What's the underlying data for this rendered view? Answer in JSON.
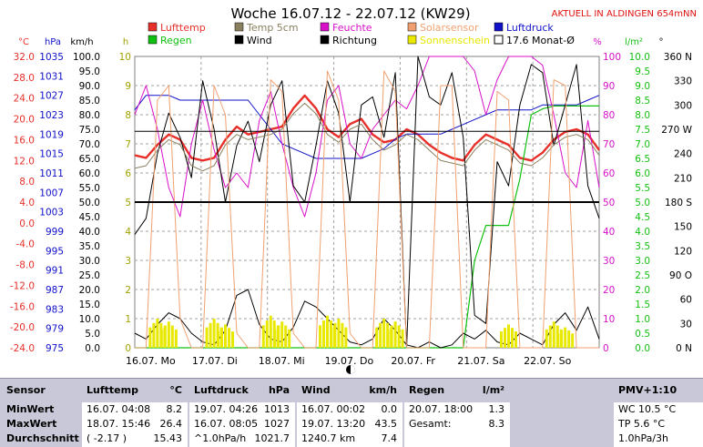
{
  "title": "Woche 16.07.12 - 22.07.12 (KW29)",
  "aktuell": "AKTUELL IN ALDINGEN 654mNN",
  "legend": [
    {
      "label": "Lufttemp",
      "color": "#e8302a"
    },
    {
      "label": "Temp 5cm",
      "color": "#8a8060"
    },
    {
      "label": "Feuchte",
      "color": "#d810c8"
    },
    {
      "label": "Solarsensor",
      "color": "#f0a070"
    },
    {
      "label": "Luftdruck",
      "color": "#1010c8"
    },
    {
      "label": "Regen",
      "color": "#10c010"
    },
    {
      "label": "Wind",
      "color": "#000000"
    },
    {
      "label": "Richtung",
      "color": "#000000"
    },
    {
      "label": "Sonnenschein",
      "color": "#e8e800"
    },
    {
      "label": "17.6 Monat-Ø",
      "color": "#000000"
    }
  ],
  "chart_data": {
    "type": "line",
    "x_labels": [
      "16.07. Mo",
      "17.07. Di",
      "18.07. Mi",
      "19.07. Do",
      "20.07. Fr",
      "21.07. Sa",
      "22.07. So"
    ],
    "axes": {
      "temp_c": {
        "unit": "°C",
        "color": "#e8302a",
        "ticks": [
          "32.0",
          "28.0",
          "24.0",
          "20.0",
          "16.0",
          "12.0",
          "8.0",
          "4.0",
          "0.0",
          "-4.0",
          "-8.0",
          "-12.0",
          "-16.0",
          "-20.0",
          "-24.0"
        ]
      },
      "pressure_hpa": {
        "unit": "hPa",
        "color": "#1010c8",
        "ticks": [
          "1035",
          "1031",
          "1027",
          "1023",
          "1019",
          "1015",
          "1011",
          "1007",
          "1003",
          "999",
          "995",
          "991",
          "987",
          "983",
          "979",
          "975"
        ]
      },
      "wind_kmh": {
        "unit": "km/h",
        "color": "#000000",
        "ticks": [
          "100.0",
          "95.0",
          "90.0",
          "85.0",
          "80.0",
          "75.0",
          "70.0",
          "65.0",
          "60.0",
          "55.0",
          "50.0",
          "45.0",
          "40.0",
          "35.0",
          "30.0",
          "25.0",
          "20.0",
          "15.0",
          "10.0",
          "5.0",
          "0.0"
        ]
      },
      "sun_h": {
        "unit": "h",
        "color": "#a0a000",
        "ticks": [
          "10",
          "9",
          "8",
          "7",
          "6",
          "5",
          "4",
          "3",
          "2",
          "1",
          "0"
        ]
      },
      "humidity_pct": {
        "unit": "%",
        "color": "#d810c8",
        "ticks": [
          "100",
          "90",
          "80",
          "70",
          "60",
          "50",
          "40",
          "30",
          "20",
          "10",
          "0"
        ]
      },
      "rain_lm2": {
        "unit": "l/m²",
        "color": "#10c010",
        "ticks": [
          "10.0",
          "9.5",
          "9.0",
          "8.5",
          "8.0",
          "7.5",
          "7.0",
          "6.5",
          "6.0",
          "5.5",
          "5.0",
          "4.5",
          "4.0",
          "3.5",
          "3.0",
          "2.5",
          "2.0",
          "1.5",
          "1.0",
          "0.5",
          "0.0"
        ]
      },
      "direction_deg": {
        "unit": "°",
        "color": "#000000",
        "ticks": [
          "360 N",
          "330",
          "300",
          "270 W",
          "240",
          "210",
          "180 S",
          "150",
          "120",
          "90 O",
          "60",
          "30",
          "0 N"
        ]
      }
    },
    "series": [
      {
        "name": "Lufttemp",
        "axis": "temp_c",
        "color": "#e8302a",
        "values": [
          13.0,
          12.5,
          15.0,
          17.0,
          16.0,
          12.5,
          12.0,
          12.5,
          16.0,
          18.5,
          17.0,
          17.5,
          18.0,
          18.5,
          22.0,
          24.5,
          22.0,
          18.0,
          16.5,
          19.0,
          20.0,
          17.0,
          15.5,
          16.0,
          18.0,
          17.0,
          15.0,
          13.5,
          12.5,
          12.0,
          15.0,
          17.0,
          16.0,
          15.0,
          12.5,
          12.0,
          13.5,
          16.0,
          17.5,
          18.0,
          17.0,
          14.0
        ]
      },
      {
        "name": "Luftdruck",
        "axis": "pressure_hpa",
        "color": "#1010c8",
        "values": [
          1024,
          1027,
          1027,
          1027,
          1026,
          1026,
          1026,
          1026,
          1026,
          1026,
          1026,
          1023,
          1020,
          1017,
          1016,
          1015,
          1014,
          1014,
          1014,
          1014,
          1014,
          1015,
          1016,
          1018,
          1019,
          1019,
          1019,
          1019,
          1020,
          1021,
          1022,
          1023,
          1024,
          1024,
          1024,
          1024,
          1025,
          1025,
          1025,
          1025,
          1026,
          1027
        ]
      },
      {
        "name": "Feuchte",
        "axis": "humidity_pct",
        "color": "#d810c8",
        "values": [
          80,
          90,
          75,
          55,
          45,
          70,
          85,
          68,
          55,
          60,
          55,
          78,
          88,
          70,
          55,
          45,
          60,
          85,
          90,
          70,
          65,
          75,
          80,
          85,
          82,
          90,
          100,
          100,
          100,
          100,
          95,
          80,
          92,
          100,
          100,
          100,
          97,
          80,
          60,
          55,
          78,
          55
        ]
      },
      {
        "name": "Regen",
        "axis": "rain_lm2",
        "color": "#10c010",
        "values": [
          0,
          0,
          0,
          0,
          0,
          0,
          0,
          0,
          0,
          0,
          0,
          0,
          0,
          0,
          0,
          0,
          0,
          0,
          0,
          0,
          0,
          0,
          0,
          0,
          0,
          0,
          0,
          0,
          0,
          0,
          3.0,
          4.2,
          4.2,
          4.2,
          5.8,
          8.0,
          8.2,
          8.3,
          8.3,
          8.3,
          8.3,
          8.3
        ]
      },
      {
        "name": "Wind",
        "axis": "wind_kmh",
        "color": "#000000",
        "values": [
          5,
          3,
          8,
          12,
          10,
          5,
          2,
          1,
          6,
          18,
          20,
          8,
          3,
          2,
          7,
          16,
          14,
          10,
          6,
          2,
          1,
          3,
          10,
          6,
          1,
          0,
          2,
          0,
          1,
          5,
          3,
          6,
          2,
          1,
          5,
          3,
          1,
          8,
          12,
          6,
          14,
          3
        ]
      },
      {
        "name": "Richtung",
        "axis": "direction_deg",
        "color": "#000000",
        "values": [
          140,
          160,
          240,
          290,
          260,
          210,
          330,
          270,
          180,
          250,
          280,
          230,
          300,
          330,
          200,
          180,
          250,
          330,
          290,
          180,
          300,
          310,
          260,
          340,
          0,
          360,
          310,
          300,
          340,
          260,
          40,
          30,
          230,
          200,
          300,
          350,
          340,
          250,
          300,
          350,
          200,
          160
        ]
      },
      {
        "name": "Temp 5cm",
        "axis": "temp_c",
        "color": "#8a8060",
        "values": [
          10.5,
          11,
          14,
          16,
          15,
          11,
          10,
          11,
          15,
          17,
          16,
          16.5,
          17,
          18,
          21,
          23,
          21,
          17,
          15.5,
          18,
          19,
          16,
          14,
          15,
          17,
          16,
          14,
          12,
          11.5,
          11,
          14,
          16,
          15,
          14,
          11.5,
          11,
          12.5,
          15,
          16.5,
          17,
          16,
          13
        ]
      },
      {
        "name": "Solarsensor",
        "axis": "humidity_pct",
        "color": "#f0a070",
        "values": [
          0,
          0,
          85,
          90,
          10,
          0,
          0,
          90,
          80,
          5,
          0,
          0,
          92,
          88,
          5,
          0,
          0,
          95,
          85,
          5,
          0,
          0,
          95,
          88,
          0,
          0,
          0,
          90,
          90,
          0,
          0,
          0,
          88,
          85,
          0,
          0,
          0,
          92,
          90,
          0,
          0,
          0
        ]
      },
      {
        "name": "Sonnenschein",
        "axis": "sun_h",
        "color": "#e8e800",
        "values": [
          0,
          0,
          1.0,
          0.9,
          0,
          0,
          0,
          1.0,
          0.8,
          0,
          0,
          0,
          1.1,
          0.9,
          0,
          0,
          0,
          1.1,
          1.0,
          0,
          0,
          0,
          1.0,
          0.9,
          0,
          0,
          0,
          0,
          0,
          0,
          0,
          0,
          0,
          0.8,
          0,
          0,
          0,
          0.9,
          0.7,
          0,
          0,
          0
        ]
      }
    ],
    "reference_lines": [
      {
        "label": "17.6 Monat-Ø",
        "axis": "temp_c",
        "value": 17.6
      },
      {
        "axis": "temp_c",
        "value": 4.0
      }
    ]
  },
  "table": {
    "sensor": {
      "header": "Sensor",
      "rows": [
        "MinWert",
        "MaxWert",
        "Durchschnitt"
      ]
    },
    "lufttemp": {
      "header": "Lufttemp",
      "unit": "°C",
      "rows": [
        [
          "16.07.  04:08",
          "8.2"
        ],
        [
          "18.07.  15:46",
          "26.4"
        ],
        [
          "( -2.17 )",
          "15.43"
        ]
      ]
    },
    "luftdruck": {
      "header": "Luftdruck",
      "unit": "hPa",
      "rows": [
        [
          "19.07.  04:26",
          "1013"
        ],
        [
          "16.07.  08:05",
          "1027"
        ],
        [
          "^1.0hPa/h",
          "1021.7"
        ]
      ]
    },
    "wind": {
      "header": "Wind",
      "unit": "km/h",
      "rows": [
        [
          "16.07.  00:02",
          "0.0"
        ],
        [
          "19.07.  13:20",
          "43.5"
        ],
        [
          "1240.7 km",
          "7.4"
        ]
      ]
    },
    "regen": {
      "header": "Regen",
      "unit": "l/m²",
      "rows": [
        [
          "20.07.  18:00",
          "1.3"
        ],
        [
          "Gesamt:",
          "8.3"
        ],
        [
          "",
          ""
        ]
      ]
    },
    "pmv": {
      "header": "PMV+1:10",
      "rows": [
        "WC 10.5 °C",
        "TP 5.6 °C",
        "1.0hPa/3h"
      ]
    }
  }
}
